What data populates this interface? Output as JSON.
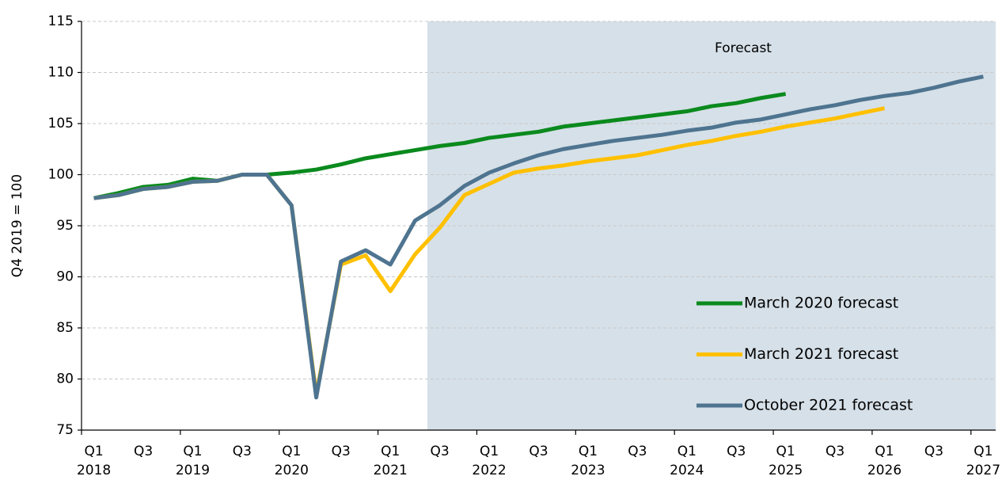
{
  "chart_data": {
    "type": "line",
    "y_label": "Q4 2019 = 100",
    "categories": [
      "Q1",
      null,
      "Q3",
      null,
      "Q1",
      null,
      "Q3",
      null,
      "Q1",
      null,
      "Q3",
      null,
      "Q1",
      null,
      "Q3",
      null,
      "Q1",
      null,
      "Q3",
      null,
      "Q1",
      null,
      "Q3",
      null,
      "Q1",
      null,
      "Q3",
      null,
      "Q1",
      null,
      "Q3",
      null,
      "Q1",
      null,
      "Q3",
      null,
      "Q1"
    ],
    "category_years": [
      "2018",
      null,
      null,
      null,
      "2019",
      null,
      null,
      null,
      "2020",
      null,
      null,
      null,
      "2021",
      null,
      null,
      null,
      "2022",
      null,
      null,
      null,
      "2023",
      null,
      null,
      null,
      "2024",
      null,
      null,
      null,
      "2025",
      null,
      null,
      null,
      "2026",
      null,
      null,
      null,
      "2027"
    ],
    "shaded_region": {
      "label": "Forecast",
      "from": 14
    },
    "series": [
      {
        "name": "March 2020 forecast",
        "color": "#0b8a1e",
        "values": [
          97.7,
          98.2,
          98.8,
          99.0,
          99.6,
          99.4,
          100,
          100,
          100.2,
          100.5,
          101.0,
          101.6,
          102.0,
          102.4,
          102.8,
          103.1,
          103.6,
          103.9,
          104.2,
          104.7,
          105.0,
          105.3,
          105.6,
          105.9,
          106.2,
          106.7,
          107.0,
          107.5,
          107.9,
          null,
          null,
          null,
          null,
          null,
          null,
          null,
          null
        ]
      },
      {
        "name": "March 2021 forecast",
        "color": "#ffc000",
        "values": [
          97.7,
          98.0,
          98.6,
          98.8,
          99.3,
          99.4,
          100,
          100,
          97.0,
          78.5,
          91.2,
          92.1,
          88.6,
          92.2,
          94.8,
          98.0,
          99.1,
          100.2,
          100.6,
          100.9,
          101.3,
          101.6,
          101.9,
          102.4,
          102.9,
          103.3,
          103.8,
          104.2,
          104.7,
          105.1,
          105.5,
          106.0,
          106.5,
          null,
          null,
          null,
          null
        ]
      },
      {
        "name": "October 2021 forecast",
        "color": "#4e7490",
        "values": [
          97.7,
          98.0,
          98.6,
          98.8,
          99.3,
          99.4,
          100,
          100,
          97.0,
          78.2,
          91.5,
          92.6,
          91.2,
          95.5,
          97.0,
          98.9,
          100.2,
          101.1,
          101.9,
          102.5,
          102.9,
          103.3,
          103.6,
          103.9,
          104.3,
          104.6,
          105.1,
          105.4,
          105.9,
          106.4,
          106.8,
          107.3,
          107.7,
          108.0,
          108.5,
          109.1,
          109.6
        ]
      }
    ],
    "ylim": [
      75,
      115
    ],
    "yticks": [
      75,
      80,
      85,
      90,
      95,
      100,
      105,
      110,
      115
    ],
    "grid": true,
    "legend": "lower-right"
  }
}
